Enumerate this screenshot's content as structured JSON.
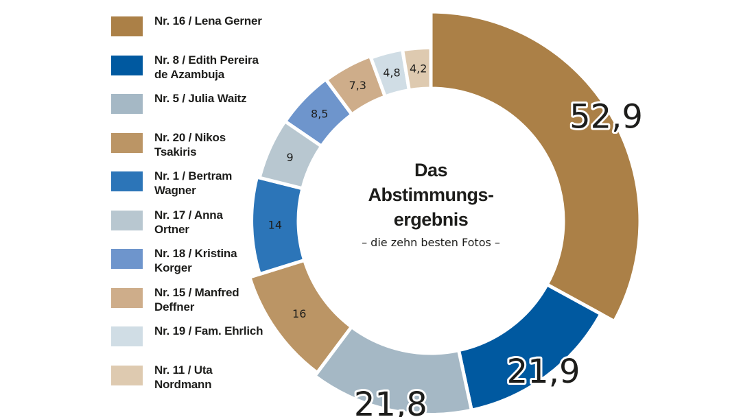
{
  "chart_data": {
    "type": "pie",
    "variant": "donut",
    "title_lines": [
      "Das",
      "Abstimmungs-",
      "ergebnis"
    ],
    "subtitle": "– die zehn besten Fotos –",
    "categories": [
      "Nr. 16 / Lena Gerner",
      "Nr. 8 / Edith Pereira de Azambuja",
      "Nr. 5 / Julia Waitz",
      "Nr. 20 / Nikos Tsakiris",
      "Nr. 1 / Bertram Wagner",
      "Nr. 17 / Anna Ortner",
      "Nr. 18 / Kristina Korger",
      "Nr. 15 / Manfred Deffner",
      "Nr. 19 / Fam. Ehrlich",
      "Nr. 11 / Uta Nordmann"
    ],
    "values": [
      52.9,
      21.9,
      21.8,
      16,
      14,
      9,
      8.5,
      7.3,
      4.8,
      4.2
    ],
    "value_labels": [
      "52,9",
      "21,9",
      "21,8",
      "16",
      "14",
      "9",
      "8,5",
      "7,3",
      "4,8",
      "4,2"
    ],
    "colors": [
      "#ab8047",
      "#0059a0",
      "#a5b8c5",
      "#bb9565",
      "#2c75b8",
      "#b8c7d0",
      "#6e95cc",
      "#cead8a",
      "#d0dde5",
      "#decab0"
    ],
    "legend_lines": [
      [
        "Nr. 16 / Lena Gerner"
      ],
      [
        "Nr. 8 / Edith Pereira",
        "de Azambuja"
      ],
      [
        "Nr. 5 / Julia Waitz"
      ],
      [
        "Nr. 20 / Nikos",
        "Tsakiris"
      ],
      [
        "Nr. 1 / Bertram",
        "Wagner"
      ],
      [
        "Nr. 17 / Anna",
        "Ortner"
      ],
      [
        "Nr. 18 / Kristina",
        "Korger"
      ],
      [
        "Nr. 15 / Manfred",
        "Deffner"
      ],
      [
        "Nr. 19 / Fam. Ehrlich"
      ],
      [
        "Nr. 11 / Uta",
        "Nordmann"
      ]
    ],
    "legend_position": "left",
    "start": "top",
    "direction": "clockwise"
  }
}
